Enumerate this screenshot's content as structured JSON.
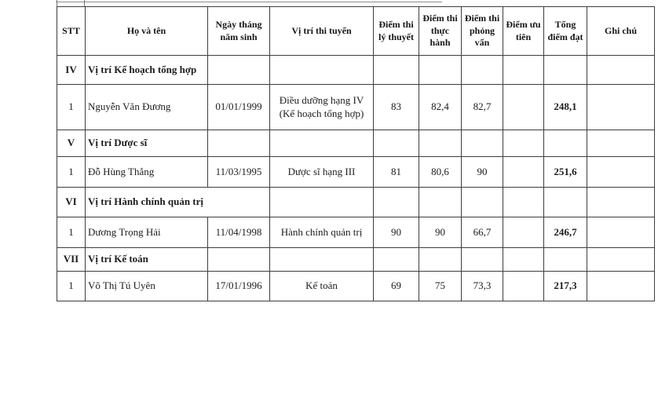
{
  "table": {
    "columns": [
      "STT",
      "Họ và tên",
      "Ngày tháng năm sinh",
      "Vị trí thi tuyển",
      "Điểm thi lý thuyết",
      "Điểm thi thực hành",
      "Điểm thi phỏng vấn",
      "Điểm ưu tiên",
      "Tổng điểm đạt",
      "Ghi chú"
    ],
    "rows": [
      {
        "type": "section",
        "stt": "IV",
        "title": "Vị trí Kế hoạch tổng hợp",
        "merged_title_cell": false
      },
      {
        "type": "data",
        "stt": "1",
        "name": "Nguyễn Văn Đương",
        "dob": "01/01/1999",
        "position": "Điều dưỡng hạng IV (Kế hoạch tổng hợp)",
        "score_theory": "83",
        "score_practice": "82,4",
        "score_interview": "82,7",
        "score_priority": "",
        "score_total": "248,1",
        "note": ""
      },
      {
        "type": "section",
        "stt": "V",
        "title": "Vị trí Dược sĩ",
        "merged_title_cell": false
      },
      {
        "type": "data",
        "stt": "1",
        "name": "Đỗ Hùng Thắng",
        "dob": "11/03/1995",
        "position": "Dược sĩ hạng III",
        "score_theory": "81",
        "score_practice": "80,6",
        "score_interview": "90",
        "score_priority": "",
        "score_total": "251,6",
        "note": ""
      },
      {
        "type": "section",
        "stt": "VI",
        "title": "Vị trí Hành chính quản trị",
        "merged_title_cell": true
      },
      {
        "type": "data",
        "stt": "1",
        "name": "Dương Trọng Hải",
        "dob": "11/04/1998",
        "position": "Hành chính quản trị",
        "score_theory": "90",
        "score_practice": "90",
        "score_interview": "66,7",
        "score_priority": "",
        "score_total": "246,7",
        "note": ""
      },
      {
        "type": "section",
        "stt": "VII",
        "title": "Vị trí Kế toán",
        "merged_title_cell": false
      },
      {
        "type": "data",
        "stt": "1",
        "name": "Võ Thị Tú Uyên",
        "dob": "17/01/1996",
        "position": "Kế toán",
        "score_theory": "69",
        "score_practice": "75",
        "score_interview": "73,3",
        "score_priority": "",
        "score_total": "217,3",
        "note": ""
      }
    ]
  }
}
